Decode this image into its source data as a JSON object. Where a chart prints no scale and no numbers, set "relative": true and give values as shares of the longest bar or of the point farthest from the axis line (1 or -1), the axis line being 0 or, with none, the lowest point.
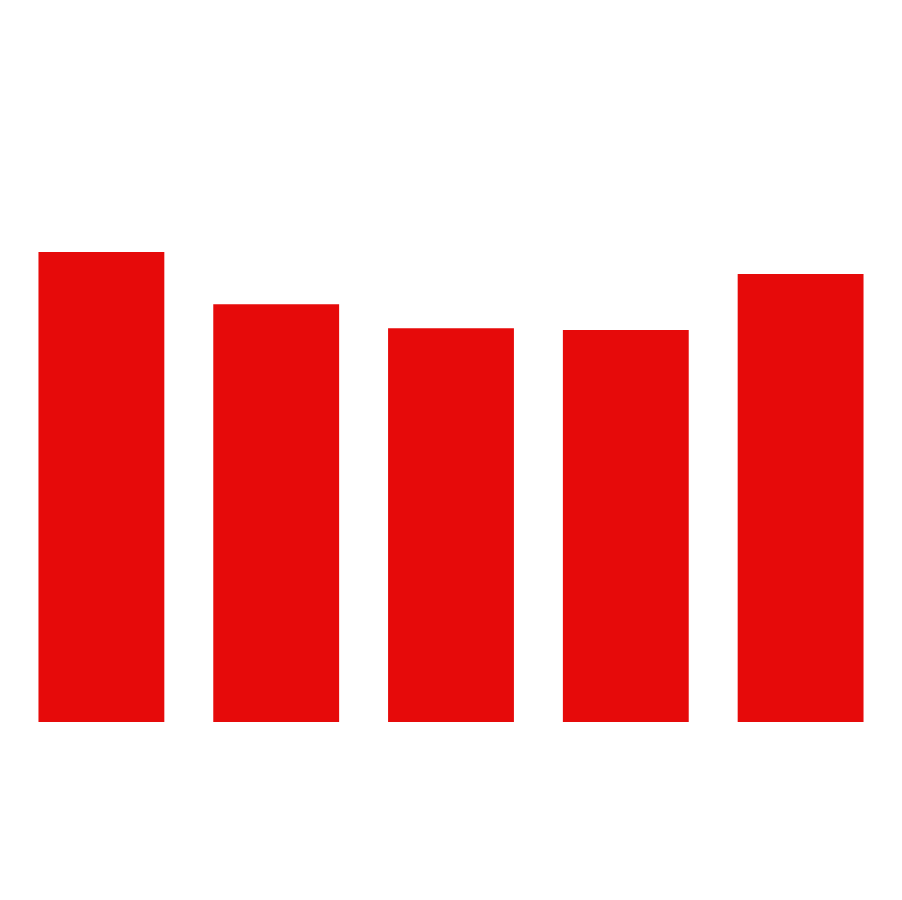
{
  "chart_data": {
    "type": "bar",
    "relative": true,
    "categories": [
      null,
      null,
      null,
      null,
      null
    ],
    "values": [
      1,
      0.889,
      0.838,
      0.834,
      0.953
    ],
    "color": "#e60a0a",
    "legend": false
  }
}
